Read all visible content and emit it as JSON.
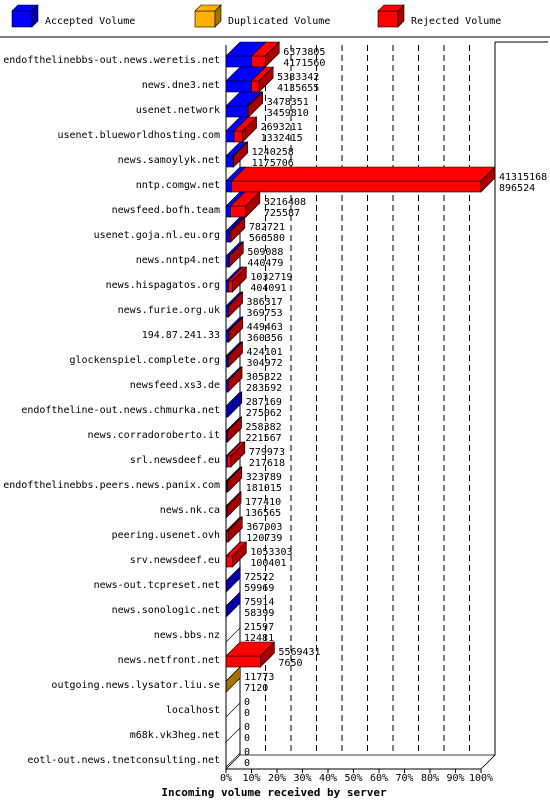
{
  "chart_data": {
    "type": "bar",
    "orientation": "horizontal",
    "stacked_3d": true,
    "xlabel": "Incoming volume received by server",
    "xlim": [
      0,
      100
    ],
    "x_ticks": [
      "0%",
      "10%",
      "20%",
      "30%",
      "40%",
      "50%",
      "60%",
      "70%",
      "80%",
      "90%",
      "100%"
    ],
    "grid": "vertical dashed",
    "legend_position": "top",
    "legend": [
      {
        "name": "Accepted Volume",
        "color": "#0000ff"
      },
      {
        "name": "Duplicated Volume",
        "color": "#ffb000"
      },
      {
        "name": "Rejected Volume",
        "color": "#ff0000"
      }
    ],
    "rows": [
      {
        "server": "endofthelinebbs-out.news.weretis.net",
        "total": "6373805",
        "accepted": "4171560",
        "acc_pct": 10.1,
        "dup_pct": 0,
        "rej_pct": 5.3
      },
      {
        "server": "news.dne3.net",
        "total": "5383342",
        "accepted": "4135655",
        "acc_pct": 10.0,
        "dup_pct": 0,
        "rej_pct": 3.0
      },
      {
        "server": "usenet.network",
        "total": "3478351",
        "accepted": "3459810",
        "acc_pct": 8.4,
        "dup_pct": 0,
        "rej_pct": 0.5
      },
      {
        "server": "usenet.blueworldhosting.com",
        "total": "2693211",
        "accepted": "1332415",
        "acc_pct": 3.2,
        "dup_pct": 0,
        "rej_pct": 3.3
      },
      {
        "server": "news.samoylyk.net",
        "total": "1240258",
        "accepted": "1175706",
        "acc_pct": 2.8,
        "dup_pct": 0,
        "rej_pct": 0.2
      },
      {
        "server": "nntp.comgw.net",
        "total": "41315168",
        "accepted": "896524",
        "acc_pct": 2.2,
        "dup_pct": 0,
        "rej_pct": 97.8
      },
      {
        "server": "newsfeed.bofh.team",
        "total": "3216408",
        "accepted": "725587",
        "acc_pct": 1.8,
        "dup_pct": 0,
        "rej_pct": 6.0
      },
      {
        "server": "usenet.goja.nl.eu.org",
        "total": "782721",
        "accepted": "566580",
        "acc_pct": 1.4,
        "dup_pct": 0,
        "rej_pct": 0.5
      },
      {
        "server": "news.nntp4.net",
        "total": "509088",
        "accepted": "440479",
        "acc_pct": 1.1,
        "dup_pct": 0,
        "rej_pct": 0.2
      },
      {
        "server": "news.hispagatos.org",
        "total": "1032719",
        "accepted": "404091",
        "acc_pct": 1.0,
        "dup_pct": 0,
        "rej_pct": 1.5
      },
      {
        "server": "news.furie.org.uk",
        "total": "386317",
        "accepted": "369753",
        "acc_pct": 0.9,
        "dup_pct": 0,
        "rej_pct": 0.1
      },
      {
        "server": "194.87.241.33",
        "total": "449463",
        "accepted": "360356",
        "acc_pct": 0.9,
        "dup_pct": 0,
        "rej_pct": 0.2
      },
      {
        "server": "glockenspiel.complete.org",
        "total": "424101",
        "accepted": "304972",
        "acc_pct": 0.7,
        "dup_pct": 0,
        "rej_pct": 0.3
      },
      {
        "server": "newsfeed.xs3.de",
        "total": "305822",
        "accepted": "283592",
        "acc_pct": 0.7,
        "dup_pct": 0,
        "rej_pct": 0.1
      },
      {
        "server": "endoftheline-out.news.chmurka.net",
        "total": "287169",
        "accepted": "275062",
        "acc_pct": 0.7,
        "dup_pct": 0,
        "rej_pct": 0.0
      },
      {
        "server": "news.corradoroberto.it",
        "total": "258382",
        "accepted": "221567",
        "acc_pct": 0.5,
        "dup_pct": 0,
        "rej_pct": 0.1
      },
      {
        "server": "srl.newsdeef.eu",
        "total": "779973",
        "accepted": "217618",
        "acc_pct": 0.5,
        "dup_pct": 0,
        "rej_pct": 1.4
      },
      {
        "server": "endofthelinebbs.peers.news.panix.com",
        "total": "323789",
        "accepted": "181015",
        "acc_pct": 0.4,
        "dup_pct": 0,
        "rej_pct": 0.3
      },
      {
        "server": "news.nk.ca",
        "total": "177410",
        "accepted": "136565",
        "acc_pct": 0.3,
        "dup_pct": 0,
        "rej_pct": 0.1
      },
      {
        "server": "peering.usenet.ovh",
        "total": "367003",
        "accepted": "120739",
        "acc_pct": 0.3,
        "dup_pct": 0,
        "rej_pct": 0.6
      },
      {
        "server": "srv.newsdeef.eu",
        "total": "1053303",
        "accepted": "100401",
        "acc_pct": 0.2,
        "dup_pct": 0,
        "rej_pct": 2.3
      },
      {
        "server": "news-out.tcpreset.net",
        "total": "72522",
        "accepted": "59969",
        "acc_pct": 0.1,
        "dup_pct": 0,
        "rej_pct": 0.0
      },
      {
        "server": "news.sonologic.net",
        "total": "75914",
        "accepted": "58399",
        "acc_pct": 0.1,
        "dup_pct": 0,
        "rej_pct": 0.0
      },
      {
        "server": "news.bbs.nz",
        "total": "21597",
        "accepted": "12481",
        "acc_pct": 0.0,
        "dup_pct": 0,
        "rej_pct": 0.0
      },
      {
        "server": "news.netfront.net",
        "total": "5569431",
        "accepted": "7650",
        "acc_pct": 0.0,
        "dup_pct": 0,
        "rej_pct": 13.5
      },
      {
        "server": "outgoing.news.lysator.liu.se",
        "total": "11773",
        "accepted": "7120",
        "acc_pct": 0.0,
        "dup_pct": 0.1,
        "rej_pct": 0.0
      },
      {
        "server": "localhost",
        "total": "0",
        "accepted": "0",
        "acc_pct": 0,
        "dup_pct": 0,
        "rej_pct": 0
      },
      {
        "server": "m68k.vk3heg.net",
        "total": "0",
        "accepted": "0",
        "acc_pct": 0,
        "dup_pct": 0,
        "rej_pct": 0
      },
      {
        "server": "eotl-out.news.tnetconsulting.net",
        "total": "0",
        "accepted": "0",
        "acc_pct": 0,
        "dup_pct": 0,
        "rej_pct": 0
      }
    ]
  }
}
